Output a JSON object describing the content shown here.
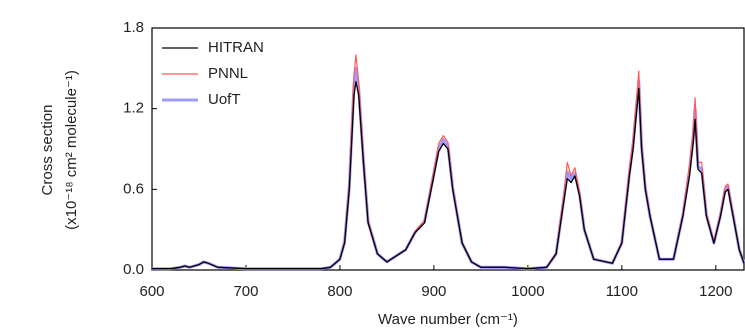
{
  "chart_data": {
    "type": "line",
    "x_label": "Wave number (cm⁻¹)",
    "y_label": [
      "Cross section",
      "(x10⁻¹⁸ cm² molecule⁻¹)"
    ],
    "x": [
      600,
      620,
      630,
      635,
      640,
      650,
      655,
      660,
      670,
      700,
      750,
      780,
      790,
      800,
      805,
      810,
      815,
      817,
      820,
      825,
      830,
      840,
      850,
      870,
      880,
      890,
      900,
      905,
      910,
      915,
      920,
      930,
      940,
      950,
      975,
      1000,
      1020,
      1030,
      1038,
      1042,
      1046,
      1050,
      1055,
      1060,
      1070,
      1090,
      1100,
      1108,
      1112,
      1116,
      1118,
      1121,
      1125,
      1130,
      1140,
      1155,
      1165,
      1172,
      1176,
      1178,
      1181,
      1185,
      1190,
      1198,
      1205,
      1210,
      1213,
      1217,
      1225,
      1230
    ],
    "series": [
      {
        "name": "HITRAN",
        "color": "#000000",
        "values": [
          0.01,
          0.01,
          0.02,
          0.03,
          0.02,
          0.04,
          0.06,
          0.05,
          0.02,
          0.01,
          0.01,
          0.01,
          0.02,
          0.08,
          0.2,
          0.6,
          1.3,
          1.4,
          1.3,
          0.8,
          0.35,
          0.12,
          0.06,
          0.15,
          0.28,
          0.35,
          0.7,
          0.88,
          0.94,
          0.9,
          0.6,
          0.2,
          0.06,
          0.02,
          0.02,
          0.01,
          0.02,
          0.12,
          0.5,
          0.68,
          0.65,
          0.7,
          0.55,
          0.3,
          0.08,
          0.05,
          0.2,
          0.7,
          0.9,
          1.2,
          1.35,
          0.9,
          0.6,
          0.4,
          0.08,
          0.08,
          0.4,
          0.7,
          0.95,
          1.12,
          0.75,
          0.72,
          0.4,
          0.2,
          0.4,
          0.58,
          0.6,
          0.45,
          0.15,
          0.05
        ]
      },
      {
        "name": "PNNL",
        "color": "#ff5a5a",
        "values": [
          0.01,
          0.01,
          0.02,
          0.03,
          0.02,
          0.04,
          0.06,
          0.05,
          0.02,
          0.01,
          0.01,
          0.01,
          0.02,
          0.08,
          0.22,
          0.65,
          1.45,
          1.6,
          1.4,
          0.85,
          0.37,
          0.12,
          0.06,
          0.15,
          0.29,
          0.37,
          0.74,
          0.94,
          1.0,
          0.95,
          0.62,
          0.21,
          0.06,
          0.02,
          0.02,
          0.01,
          0.02,
          0.13,
          0.55,
          0.8,
          0.7,
          0.76,
          0.58,
          0.31,
          0.08,
          0.05,
          0.21,
          0.76,
          0.98,
          1.3,
          1.48,
          0.95,
          0.63,
          0.41,
          0.08,
          0.08,
          0.42,
          0.78,
          1.05,
          1.28,
          0.8,
          0.8,
          0.42,
          0.21,
          0.42,
          0.62,
          0.64,
          0.47,
          0.16,
          0.05
        ]
      },
      {
        "name": "UofT",
        "color": "#9c9cff",
        "values": [
          0.01,
          0.01,
          0.02,
          0.03,
          0.02,
          0.04,
          0.06,
          0.05,
          0.02,
          0.01,
          0.01,
          0.01,
          0.02,
          0.08,
          0.21,
          0.62,
          1.38,
          1.5,
          1.35,
          0.82,
          0.36,
          0.12,
          0.06,
          0.15,
          0.28,
          0.36,
          0.72,
          0.9,
          0.97,
          0.92,
          0.61,
          0.2,
          0.06,
          0.02,
          0.02,
          0.01,
          0.02,
          0.12,
          0.52,
          0.73,
          0.67,
          0.72,
          0.56,
          0.3,
          0.08,
          0.05,
          0.2,
          0.72,
          0.93,
          1.25,
          1.4,
          0.92,
          0.61,
          0.4,
          0.08,
          0.08,
          0.41,
          0.74,
          1.0,
          1.2,
          0.77,
          0.75,
          0.41,
          0.2,
          0.41,
          0.6,
          0.62,
          0.46,
          0.15,
          0.05
        ]
      }
    ],
    "xlim": [
      600,
      1230
    ],
    "xticks": [
      600,
      700,
      800,
      900,
      1000,
      1100,
      1200
    ],
    "ylim": [
      0,
      1.8
    ],
    "yticks": [
      {
        "value": 0,
        "label": "0.0"
      },
      0.6,
      1.2,
      1.8
    ],
    "legend": "upper left",
    "grid": false
  }
}
